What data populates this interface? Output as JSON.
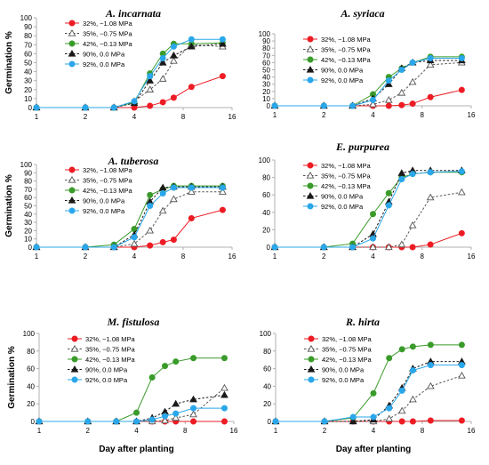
{
  "chart_data": [
    {
      "type": "line",
      "title": "A. incarnata",
      "ylabel": "Germination %",
      "xlabel": "",
      "ylim": [
        0,
        100
      ],
      "yticks": [
        0,
        10,
        20,
        30,
        40,
        50,
        60,
        70,
        80,
        90,
        100
      ],
      "xscale": "log",
      "xticks": [
        1,
        2,
        4,
        8,
        16
      ],
      "legend": "left",
      "series": [
        {
          "name": "32%, −1.08 MPa",
          "x": [
            1,
            2,
            3,
            4,
            5,
            6,
            7,
            9,
            14
          ],
          "y": [
            0,
            0,
            0,
            0,
            2,
            6,
            11,
            23,
            35
          ]
        },
        {
          "name": "35%, −0.75 MPa",
          "x": [
            1,
            2,
            3,
            4,
            5,
            6,
            7,
            9,
            14
          ],
          "y": [
            0,
            0,
            0,
            7,
            20,
            32,
            52,
            70,
            68
          ]
        },
        {
          "name": "42%, −0.13 MPa",
          "x": [
            1,
            2,
            3,
            4,
            5,
            6,
            7,
            9,
            14
          ],
          "y": [
            0,
            0,
            0,
            6,
            38,
            60,
            71,
            71,
            72
          ]
        },
        {
          "name": "90%, 0.0 MPa",
          "x": [
            1,
            2,
            3,
            4,
            5,
            6,
            7,
            9,
            14
          ],
          "y": [
            0,
            0,
            0,
            5,
            30,
            50,
            58,
            68,
            71
          ]
        },
        {
          "name": "92%, 0.0 MPa",
          "x": [
            1,
            2,
            3,
            4,
            5,
            6,
            7,
            9,
            14
          ],
          "y": [
            0,
            0,
            0,
            7,
            35,
            55,
            68,
            76,
            76
          ]
        }
      ]
    },
    {
      "type": "line",
      "title": "A. syriaca",
      "ylabel": "",
      "xlabel": "",
      "ylim": [
        0,
        100
      ],
      "yticks": [
        0,
        10,
        20,
        30,
        40,
        50,
        60,
        70,
        80,
        90,
        100
      ],
      "xscale": "log",
      "xticks": [
        1,
        2,
        4,
        8,
        16
      ],
      "legend": "left",
      "series": [
        {
          "name": "32%, −1.08 MPa",
          "x": [
            1,
            2,
            3,
            4,
            5,
            6,
            7,
            9,
            14
          ],
          "y": [
            0,
            0,
            0,
            0,
            0,
            1,
            3,
            12,
            22
          ]
        },
        {
          "name": "35%, −0.75 MPa",
          "x": [
            1,
            2,
            3,
            4,
            5,
            6,
            7,
            9,
            14
          ],
          "y": [
            0,
            0,
            0,
            2,
            8,
            18,
            33,
            57,
            60
          ]
        },
        {
          "name": "42%, −0.13 MPa",
          "x": [
            1,
            2,
            3,
            4,
            5,
            6,
            7,
            9,
            14
          ],
          "y": [
            0,
            0,
            0,
            16,
            40,
            52,
            60,
            68,
            68
          ]
        },
        {
          "name": "90%, 0.0 MPa",
          "x": [
            1,
            2,
            3,
            4,
            5,
            6,
            7,
            9,
            14
          ],
          "y": [
            0,
            0,
            0,
            10,
            30,
            52,
            60,
            63,
            63
          ]
        },
        {
          "name": "92%, 0.0 MPa",
          "x": [
            1,
            2,
            3,
            4,
            5,
            6,
            7,
            9,
            14
          ],
          "y": [
            0,
            0,
            0,
            8,
            35,
            50,
            60,
            66,
            66
          ]
        }
      ]
    },
    {
      "type": "line",
      "title": "A. tuberosa",
      "ylabel": "Germination %",
      "xlabel": "",
      "ylim": [
        0,
        100
      ],
      "yticks": [
        0,
        10,
        20,
        30,
        40,
        50,
        60,
        70,
        80,
        90,
        100
      ],
      "xscale": "log",
      "xticks": [
        1,
        2,
        4,
        8,
        16
      ],
      "legend": "left",
      "series": [
        {
          "name": "32%, −1.08 MPa",
          "x": [
            1,
            2,
            3,
            4,
            5,
            6,
            7,
            9,
            14
          ],
          "y": [
            0,
            0,
            0,
            0,
            2,
            6,
            9,
            35,
            45
          ]
        },
        {
          "name": "35%, −0.75 MPa",
          "x": [
            1,
            2,
            3,
            4,
            5,
            6,
            7,
            9,
            14
          ],
          "y": [
            0,
            0,
            0,
            4,
            20,
            44,
            58,
            67,
            67
          ]
        },
        {
          "name": "42%, −0.13 MPa",
          "x": [
            1,
            2,
            3,
            4,
            5,
            6,
            7,
            9,
            14
          ],
          "y": [
            0,
            0,
            3,
            22,
            63,
            70,
            74,
            74,
            74
          ]
        },
        {
          "name": "90%, 0.0 MPa",
          "x": [
            1,
            2,
            3,
            4,
            5,
            6,
            7,
            9,
            14
          ],
          "y": [
            0,
            0,
            0,
            15,
            55,
            72,
            73,
            73,
            73
          ]
        },
        {
          "name": "92%, 0.0 MPa",
          "x": [
            1,
            2,
            3,
            4,
            5,
            6,
            7,
            9,
            14
          ],
          "y": [
            0,
            0,
            0,
            12,
            50,
            65,
            72,
            72,
            72
          ]
        }
      ]
    },
    {
      "type": "line",
      "title": "E. purpurea",
      "ylabel": "",
      "xlabel": "",
      "ylim": [
        0,
        100
      ],
      "yticks": [
        0,
        20,
        40,
        60,
        80,
        100
      ],
      "xscale": "log",
      "xticks": [
        1,
        2,
        4,
        8,
        16
      ],
      "legend": "left",
      "series": [
        {
          "name": "32%, −1.08 MPa",
          "x": [
            1,
            2,
            3,
            4,
            5,
            6,
            7,
            9,
            14
          ],
          "y": [
            0,
            0,
            0,
            0,
            0,
            0,
            0,
            3,
            16
          ]
        },
        {
          "name": "35%, −0.75 MPa",
          "x": [
            1,
            2,
            3,
            4,
            5,
            6,
            7,
            9,
            14
          ],
          "y": [
            0,
            0,
            0,
            0,
            0,
            3,
            25,
            57,
            63
          ]
        },
        {
          "name": "42%, −0.13 MPa",
          "x": [
            1,
            2,
            3,
            4,
            5,
            6,
            7,
            9,
            14
          ],
          "y": [
            0,
            0,
            4,
            38,
            62,
            80,
            84,
            86,
            86
          ]
        },
        {
          "name": "90%, 0.0 MPa",
          "x": [
            1,
            2,
            3,
            4,
            5,
            6,
            7,
            9,
            14
          ],
          "y": [
            0,
            0,
            0,
            15,
            52,
            85,
            88,
            88,
            88
          ]
        },
        {
          "name": "92%, 0.0 MPa",
          "x": [
            1,
            2,
            3,
            4,
            5,
            6,
            7,
            9,
            14
          ],
          "y": [
            0,
            0,
            0,
            10,
            48,
            78,
            84,
            86,
            87
          ]
        }
      ]
    },
    {
      "type": "line",
      "title": "M. fistulosa",
      "ylabel": "Germination %",
      "xlabel": "Day after planting",
      "ylim": [
        0,
        100
      ],
      "yticks": [
        0,
        20,
        40,
        60,
        80,
        100
      ],
      "xscale": "log",
      "xticks": [
        1,
        2,
        4,
        8,
        16
      ],
      "legend": "left",
      "series": [
        {
          "name": "32%, −1.08 MPa",
          "x": [
            1,
            2,
            3,
            4,
            5,
            6,
            7,
            9,
            14
          ],
          "y": [
            0,
            0,
            0,
            0,
            0,
            0,
            0,
            0,
            0
          ]
        },
        {
          "name": "35%, −0.75 MPa",
          "x": [
            1,
            2,
            3,
            4,
            5,
            6,
            7,
            9,
            14
          ],
          "y": [
            0,
            0,
            0,
            0,
            0,
            1,
            4,
            8,
            38
          ]
        },
        {
          "name": "42%, −0.13 MPa",
          "x": [
            1,
            2,
            3,
            4,
            5,
            6,
            7,
            9,
            14
          ],
          "y": [
            0,
            0,
            0,
            10,
            50,
            63,
            68,
            72,
            72
          ]
        },
        {
          "name": "90%, 0.0 MPa",
          "x": [
            1,
            2,
            3,
            4,
            5,
            6,
            7,
            9,
            14
          ],
          "y": [
            0,
            0,
            0,
            0,
            4,
            11,
            20,
            25,
            30
          ]
        },
        {
          "name": "92%, 0.0 MPa",
          "x": [
            1,
            2,
            3,
            4,
            5,
            6,
            7,
            9,
            14
          ],
          "y": [
            0,
            0,
            0,
            0,
            2,
            6,
            9,
            15,
            15
          ]
        }
      ]
    },
    {
      "type": "line",
      "title": "R. hirta",
      "ylabel": "",
      "xlabel": "Day after planting",
      "ylim": [
        0,
        100
      ],
      "yticks": [
        0,
        20,
        40,
        60,
        80,
        100
      ],
      "xscale": "log",
      "xticks": [
        1,
        2,
        4,
        8,
        16
      ],
      "legend": "left",
      "series": [
        {
          "name": "32%, −1.08 MPa",
          "x": [
            1,
            2,
            3,
            4,
            5,
            6,
            7,
            9,
            14
          ],
          "y": [
            0,
            0,
            0,
            0,
            0,
            0,
            0,
            1,
            1
          ]
        },
        {
          "name": "35%, −0.75 MPa",
          "x": [
            1,
            2,
            3,
            4,
            5,
            6,
            7,
            9,
            14
          ],
          "y": [
            0,
            0,
            0,
            0,
            3,
            12,
            25,
            40,
            52
          ]
        },
        {
          "name": "42%, −0.13 MPa",
          "x": [
            1,
            2,
            3,
            4,
            5,
            6,
            7,
            9,
            14
          ],
          "y": [
            0,
            0,
            4,
            32,
            72,
            82,
            85,
            87,
            87
          ]
        },
        {
          "name": "90%, 0.0 MPa",
          "x": [
            1,
            2,
            3,
            4,
            5,
            6,
            7,
            9,
            14
          ],
          "y": [
            0,
            0,
            0,
            2,
            18,
            38,
            60,
            68,
            68
          ]
        },
        {
          "name": "92%, 0.0 MPa",
          "x": [
            1,
            2,
            3,
            4,
            5,
            6,
            7,
            9,
            14
          ],
          "y": [
            0,
            0,
            5,
            5,
            15,
            35,
            58,
            64,
            64
          ]
        }
      ]
    }
  ],
  "style": {
    "series_colors": [
      "#ed1c24",
      "#555555",
      "#3a9b2a",
      "#1a1a1a",
      "#2aa7ea"
    ],
    "series_markers": [
      "circle",
      "triangle-open",
      "circle",
      "triangle-filled",
      "circle"
    ],
    "series_dashed": [
      false,
      true,
      false,
      true,
      false
    ],
    "axis_color": "#b0b0b0"
  }
}
